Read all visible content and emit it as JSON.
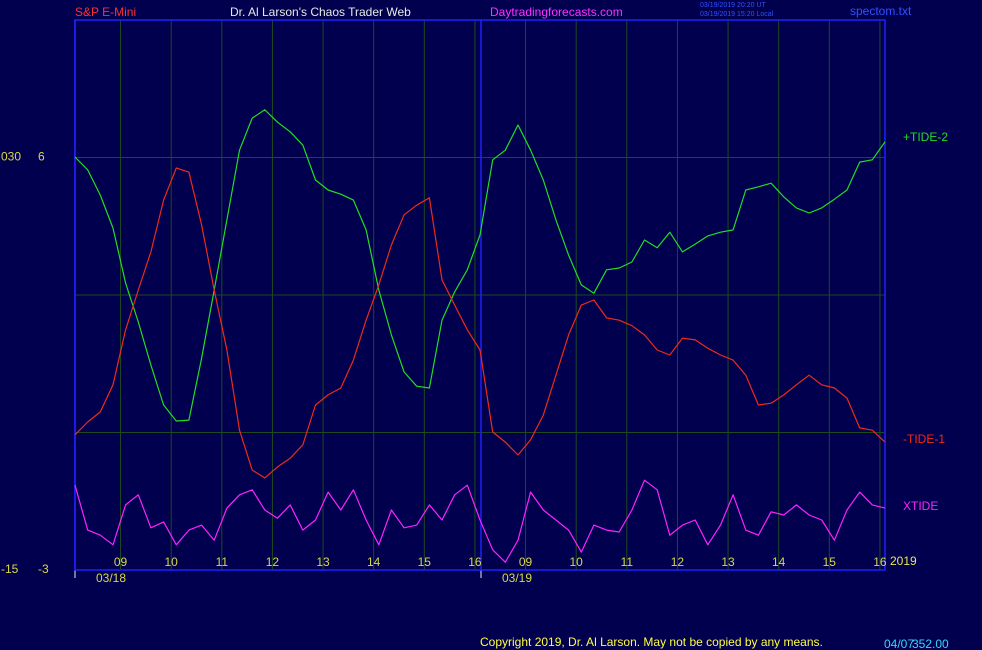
{
  "chart_data": {
    "type": "line",
    "symbol": "S&P E-Mini",
    "title": "Dr. Al Larson's Chaos Trader Web",
    "website": "Daytradingforecasts.com",
    "timestamps": [
      "03/19/2019 20:20 UT",
      "03/19/2019 15:20 Local"
    ],
    "filename": "spectom.txt",
    "year": "2019",
    "footer": "Copyright 2019, Dr. Al Larson. May not be copied by any means.",
    "status": [
      "04/07",
      "352.00"
    ],
    "xlim": [
      8.1,
      24.1
    ],
    "xticks": [
      {
        "value": 9,
        "label": "09"
      },
      10,
      11,
      12,
      13,
      14,
      15,
      16,
      {
        "value": 17,
        "label": "09"
      },
      {
        "value": 18,
        "label": "10"
      },
      {
        "value": 19,
        "label": "11"
      },
      {
        "value": 20,
        "label": "12"
      },
      {
        "value": 21,
        "label": "13"
      },
      {
        "value": 22,
        "label": "14"
      },
      {
        "value": 23,
        "label": "15"
      },
      {
        "value": 24,
        "label": "16"
      }
    ],
    "date_marks": [
      {
        "value": 8.1,
        "label": "03/18"
      },
      {
        "value": 16.12,
        "label": "03/19"
      }
    ],
    "ylim": [
      -3,
      9
    ],
    "yticks": [
      -3,
      6
    ],
    "ygrid": [
      0,
      3,
      6
    ],
    "y2lim": [
      -15,
      45
    ],
    "y2ticks": [
      -15,
      {
        "value": 30,
        "label": "030"
      }
    ],
    "grid": true,
    "x": [
      8.1,
      8.35,
      8.6,
      8.85,
      9.1,
      9.35,
      9.6,
      9.85,
      10.1,
      10.35,
      10.6,
      10.85,
      11.1,
      11.35,
      11.6,
      11.85,
      12.1,
      12.35,
      12.6,
      12.85,
      13.1,
      13.35,
      13.6,
      13.85,
      14.1,
      14.35,
      14.6,
      14.85,
      15.1,
      15.35,
      15.6,
      15.85,
      16.1,
      16.35,
      16.6,
      16.85,
      17.1,
      17.35,
      17.6,
      17.85,
      18.1,
      18.35,
      18.6,
      18.85,
      19.1,
      19.35,
      19.6,
      19.85,
      20.1,
      20.35,
      20.6,
      20.85,
      21.1,
      21.35,
      21.6,
      21.85,
      22.1,
      22.35,
      22.6,
      22.85,
      23.1,
      23.35,
      23.6,
      23.85,
      24.1
    ],
    "series": [
      {
        "name": "+TIDE-2",
        "color": "#22dd22",
        "values": [
          6.01,
          5.73,
          5.18,
          4.46,
          3.26,
          2.41,
          1.47,
          0.6,
          0.25,
          0.27,
          1.62,
          3.11,
          4.64,
          6.16,
          6.86,
          7.04,
          6.77,
          6.56,
          6.27,
          5.51,
          5.29,
          5.2,
          5.07,
          4.42,
          3.11,
          2.13,
          1.32,
          1.01,
          0.97,
          2.45,
          3.07,
          3.55,
          4.31,
          5.95,
          6.16,
          6.71,
          6.16,
          5.51,
          4.64,
          3.87,
          3.22,
          3.04,
          3.55,
          3.59,
          3.72,
          4.2,
          4.03,
          4.37,
          3.94,
          4.11,
          4.29,
          4.37,
          4.42,
          5.29,
          5.36,
          5.44,
          5.14,
          4.9,
          4.79,
          4.9,
          5.09,
          5.29,
          5.9,
          5.95,
          6.34
        ]
      },
      {
        "name": "-TIDE-1",
        "color": "#ee2a1a",
        "values": [
          -0.05,
          0.23,
          0.45,
          1.04,
          2.24,
          3.11,
          3.94,
          5.07,
          5.77,
          5.68,
          4.53,
          3.11,
          1.8,
          0.05,
          -0.82,
          -0.99,
          -0.75,
          -0.56,
          -0.27,
          0.6,
          0.82,
          0.97,
          1.58,
          2.45,
          3.22,
          4.09,
          4.75,
          4.96,
          5.12,
          3.33,
          2.78,
          2.24,
          1.8,
          0.01,
          -0.21,
          -0.49,
          -0.16,
          0.38,
          1.25,
          2.13,
          2.78,
          2.89,
          2.5,
          2.45,
          2.33,
          2.13,
          1.8,
          1.69,
          2.06,
          2.02,
          1.84,
          1.69,
          1.58,
          1.25,
          0.6,
          0.64,
          0.82,
          1.04,
          1.25,
          1.04,
          0.97,
          0.75,
          0.1,
          0.05,
          -0.21
        ]
      },
      {
        "name": "XTIDE",
        "color": "#ff22ff",
        "values": [
          -1.15,
          -2.13,
          -2.24,
          -2.45,
          -1.58,
          -1.36,
          -2.08,
          -1.95,
          -2.45,
          -2.13,
          -2.02,
          -2.35,
          -1.65,
          -1.36,
          -1.25,
          -1.69,
          -1.87,
          -1.58,
          -2.13,
          -1.91,
          -1.3,
          -1.69,
          -1.25,
          -1.91,
          -2.45,
          -1.69,
          -2.08,
          -2.02,
          -1.58,
          -1.91,
          -1.36,
          -1.15,
          -1.91,
          -2.56,
          -2.83,
          -2.35,
          -1.3,
          -1.69,
          -1.91,
          -2.13,
          -2.61,
          -2.02,
          -2.13,
          -2.17,
          -1.69,
          -1.04,
          -1.25,
          -2.24,
          -2.02,
          -1.91,
          -2.45,
          -2.02,
          -1.36,
          -2.13,
          -2.24,
          -1.73,
          -1.8,
          -1.58,
          -1.8,
          -1.91,
          -2.35,
          -1.69,
          -1.3,
          -1.58,
          -1.65
        ]
      }
    ]
  }
}
